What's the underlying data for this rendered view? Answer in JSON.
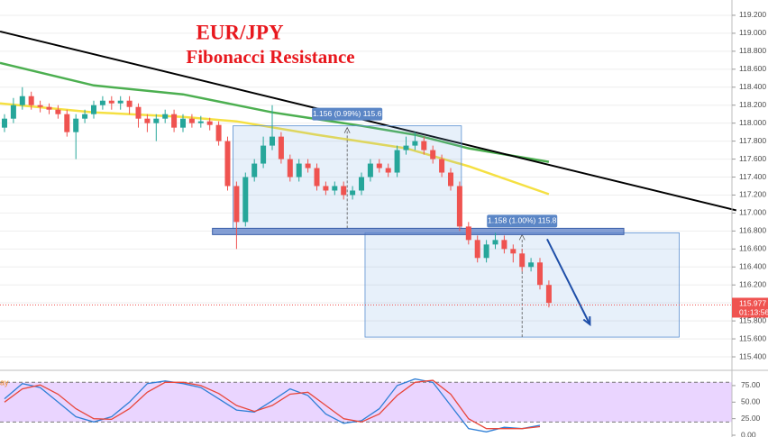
{
  "chart_data": [
    {
      "type": "candlestick",
      "title": "EUR/JPY",
      "subtitle": "Fibonacci Resistance",
      "up_color": "#26a69a",
      "down_color": "#ef5350",
      "open": [
        117.95,
        118.05,
        118.2,
        118.3,
        118.2,
        118.18,
        118.15,
        118.1,
        117.9,
        118.05,
        118.1,
        118.2,
        118.25,
        118.22,
        118.25,
        118.18,
        118.05,
        118,
        118.05,
        118.1,
        117.95,
        118.05,
        118,
        118.02,
        117.98,
        117.8,
        117.3,
        116.9,
        117.4,
        117.55,
        117.75,
        117.85,
        117.6,
        117.4,
        117.55,
        117.5,
        117.3,
        117.25,
        117.3,
        117.2,
        117.25,
        117.4,
        117.55,
        117.5,
        117.45,
        117.7,
        117.75,
        117.8,
        117.7,
        117.6,
        117.45,
        117.3,
        116.85,
        116.7,
        116.5,
        116.65,
        116.7,
        116.6,
        116.55,
        116.4,
        116.45,
        116.2
      ],
      "high": [
        118.1,
        118.28,
        118.4,
        118.35,
        118.25,
        118.22,
        118.2,
        118.15,
        118.1,
        118.15,
        118.25,
        118.3,
        118.3,
        118.3,
        118.3,
        118.22,
        118.1,
        118.1,
        118.15,
        118.15,
        118.1,
        118.1,
        118.08,
        118.06,
        118.02,
        117.85,
        117.35,
        117.45,
        117.6,
        117.85,
        118.2,
        117.9,
        117.65,
        117.6,
        117.6,
        117.55,
        117.35,
        117.35,
        117.35,
        117.3,
        117.45,
        117.6,
        117.6,
        117.55,
        117.75,
        117.85,
        117.9,
        117.85,
        117.75,
        117.65,
        117.5,
        117.35,
        116.9,
        116.75,
        116.7,
        116.78,
        116.75,
        116.65,
        116.6,
        116.5,
        116.5,
        116.25
      ],
      "low": [
        117.9,
        118.0,
        118.15,
        118.15,
        118.12,
        118.1,
        118.05,
        117.85,
        117.6,
        118.0,
        118.05,
        118.15,
        118.15,
        118.15,
        118.1,
        117.95,
        117.9,
        117.8,
        118.0,
        117.9,
        117.9,
        117.95,
        117.95,
        117.92,
        117.75,
        117.25,
        116.6,
        116.85,
        117.35,
        117.5,
        117.7,
        117.55,
        117.35,
        117.35,
        117.45,
        117.25,
        117.2,
        117.2,
        117.15,
        117.15,
        117.2,
        117.35,
        117.45,
        117.4,
        117.4,
        117.65,
        117.7,
        117.65,
        117.55,
        117.4,
        117.25,
        116.8,
        116.65,
        116.45,
        116.45,
        116.6,
        116.55,
        116.45,
        116.35,
        116.35,
        116.15,
        115.95
      ],
      "close": [
        118.05,
        118.2,
        118.3,
        118.2,
        118.18,
        118.15,
        118.1,
        117.9,
        118.05,
        118.1,
        118.2,
        118.25,
        118.22,
        118.25,
        118.18,
        118.05,
        118,
        118.05,
        118.1,
        117.95,
        118.05,
        118,
        118.02,
        117.98,
        117.8,
        117.3,
        116.9,
        117.4,
        117.55,
        117.75,
        117.85,
        117.6,
        117.4,
        117.55,
        117.5,
        117.3,
        117.25,
        117.3,
        117.2,
        117.25,
        117.4,
        117.55,
        117.5,
        117.45,
        117.7,
        117.75,
        117.8,
        117.7,
        117.6,
        117.45,
        117.3,
        116.85,
        116.7,
        116.5,
        116.65,
        116.7,
        116.6,
        116.55,
        116.4,
        116.45,
        116.2,
        116.0
      ],
      "series": [
        {
          "color": "#4caf50",
          "x": [
            -0.5,
            10,
            20,
            30,
            40,
            46,
            52,
            61
          ],
          "values": [
            118.67,
            118.42,
            118.32,
            118.12,
            117.97,
            117.87,
            117.72,
            117.57
          ]
        },
        {
          "color": "#f5e042",
          "x": [
            -0.5,
            10,
            20,
            26,
            35,
            45,
            52,
            61
          ],
          "values": [
            118.22,
            118.12,
            118.07,
            118.02,
            117.87,
            117.72,
            117.52,
            117.21
          ]
        }
      ],
      "trendline": {
        "color": "#000000",
        "x": [
          -0.5,
          82
        ],
        "values": [
          119.02,
          117.03
        ]
      },
      "support_zone": {
        "color": "#5b7fc7",
        "x": [
          23.3,
          69.4
        ],
        "values": [
          116.76,
          116.83
        ]
      },
      "measures": [
        {
          "x": [
            25.6,
            51.2
          ],
          "values": [
            116.83,
            117.97
          ],
          "label": "1.156 (0.99%) 115.6"
        },
        {
          "x": [
            40.4,
            75.6
          ],
          "values": [
            115.62,
            116.78
          ],
          "label": "1.158 (1.00%) 115.8"
        }
      ],
      "arrow": {
        "color": "#1f4fa8",
        "x": [
          60.8,
          65.6
        ],
        "values": [
          116.71,
          115.76
        ]
      },
      "last_price": {
        "value": 115.977,
        "label": "115.977",
        "countdown": "01:13:56",
        "color": "#ef5350"
      },
      "ylim": [
        115.26,
        119.37
      ],
      "yticks": [
        {
          "value": 115.4,
          "label": "115.400"
        },
        {
          "value": 115.6,
          "label": "115.600"
        },
        {
          "value": 115.8,
          "label": "115.800"
        },
        {
          "value": 116.0,
          "label": "116.000"
        },
        {
          "value": 116.2,
          "label": "116.200"
        },
        {
          "value": 116.4,
          "label": "116.400"
        },
        {
          "value": 116.6,
          "label": "116.600"
        },
        {
          "value": 116.8,
          "label": "116.800"
        },
        {
          "value": 117.0,
          "label": "117.000"
        },
        {
          "value": 117.2,
          "label": "117.200"
        },
        {
          "value": 117.4,
          "label": "117.400"
        },
        {
          "value": 117.6,
          "label": "117.600"
        },
        {
          "value": 117.8,
          "label": "117.800"
        },
        {
          "value": 118.0,
          "label": "118.000"
        },
        {
          "value": 118.2,
          "label": "118.200"
        },
        {
          "value": 118.4,
          "label": "118.400"
        },
        {
          "value": 118.6,
          "label": "118.600"
        },
        {
          "value": 118.8,
          "label": "118.800"
        },
        {
          "value": 119.0,
          "label": "119.000"
        },
        {
          "value": 119.2,
          "label": "119.200"
        }
      ],
      "grid": true
    },
    {
      "type": "line",
      "label": "ay",
      "band": [
        20,
        80
      ],
      "band_color": "#d9b3ff",
      "series": [
        {
          "color": "#2f7fd6",
          "x": [
            0,
            2,
            4,
            6,
            8,
            10,
            12,
            14,
            16,
            18,
            20,
            22,
            24,
            26,
            28,
            30,
            32,
            34,
            36,
            38,
            40,
            42,
            44,
            46,
            48,
            50,
            52,
            54,
            56,
            58,
            60
          ],
          "values": [
            55,
            78,
            72,
            50,
            28,
            20,
            28,
            50,
            78,
            82,
            78,
            72,
            55,
            38,
            35,
            52,
            70,
            60,
            32,
            18,
            22,
            40,
            75,
            85,
            80,
            45,
            10,
            5,
            12,
            10,
            15
          ]
        },
        {
          "color": "#e8473b",
          "x": [
            0,
            2,
            4,
            6,
            8,
            10,
            12,
            14,
            16,
            18,
            20,
            22,
            24,
            26,
            28,
            30,
            32,
            34,
            36,
            38,
            40,
            42,
            44,
            46,
            48,
            50,
            52,
            54,
            56,
            58,
            60
          ],
          "values": [
            50,
            70,
            76,
            62,
            40,
            25,
            24,
            40,
            65,
            80,
            80,
            75,
            63,
            45,
            36,
            45,
            62,
            65,
            45,
            25,
            20,
            32,
            60,
            80,
            83,
            62,
            25,
            10,
            10,
            10,
            13
          ]
        }
      ],
      "ylim": [
        -2.7,
        92.6
      ],
      "yticks": [
        {
          "value": 0,
          "label": "0.00"
        },
        {
          "value": 25,
          "label": "25.00"
        },
        {
          "value": 50,
          "label": "50.00"
        },
        {
          "value": 75,
          "label": "75.00"
        }
      ]
    }
  ]
}
